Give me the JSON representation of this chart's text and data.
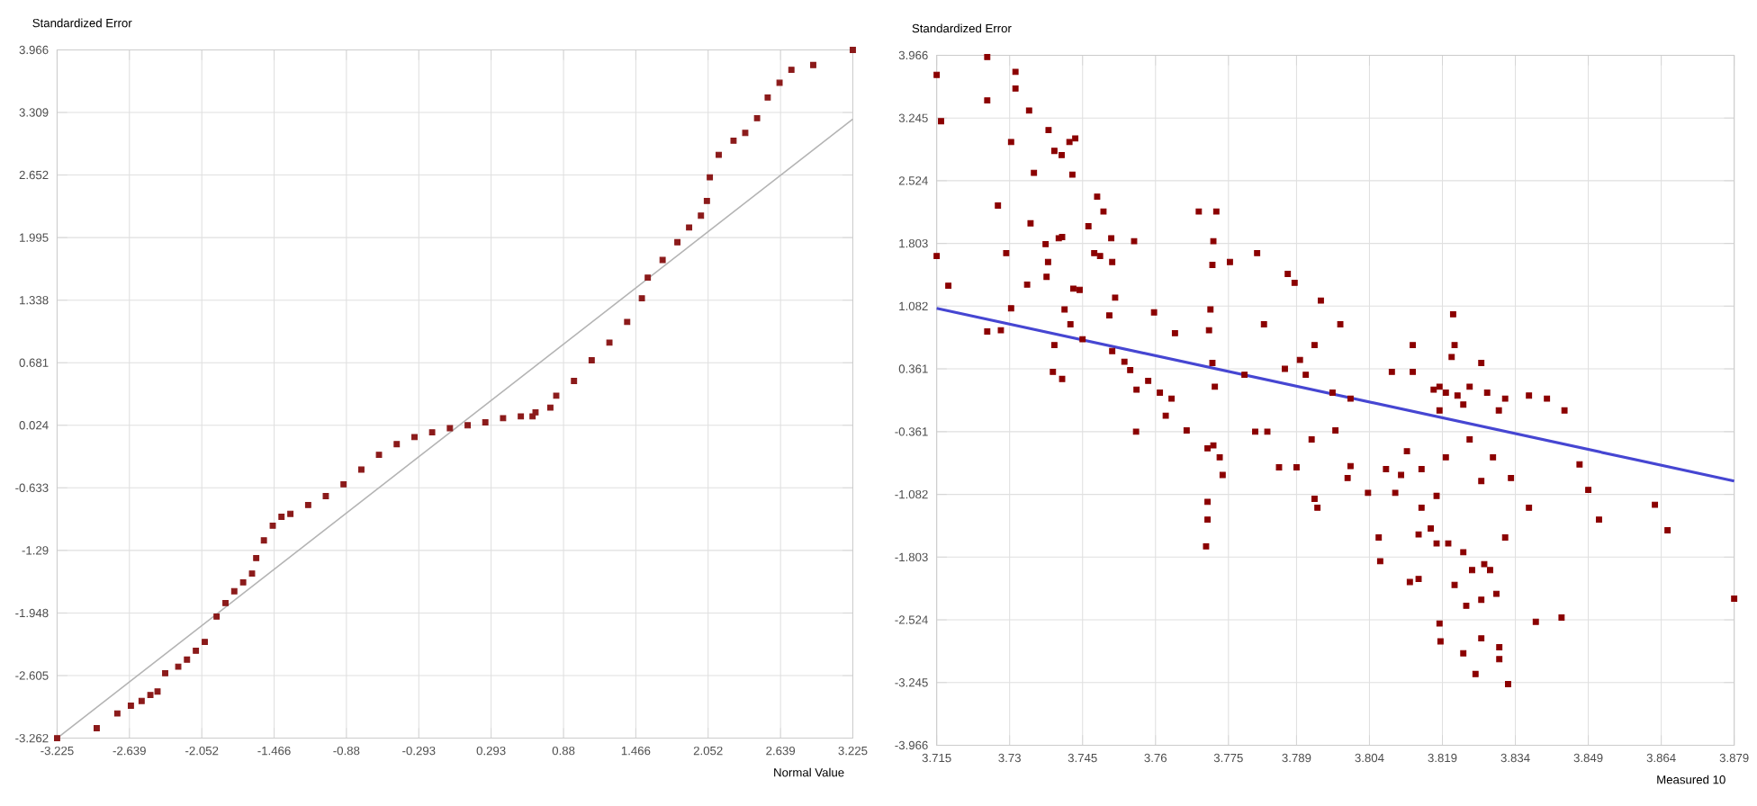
{
  "chart_data": [
    {
      "type": "scatter",
      "xlabel": "Normal Value",
      "ylabel": "Standardized Error",
      "grid": true,
      "xlim": [
        -3.225,
        3.225
      ],
      "ylim": [
        -3.262,
        3.966
      ],
      "xticks": [
        -3.225,
        -2.639,
        -2.052,
        -1.466,
        -0.88,
        -0.293,
        0.293,
        0.88,
        1.466,
        2.052,
        2.639,
        3.225
      ],
      "yticks": [
        -3.262,
        -2.605,
        -1.948,
        -1.29,
        -0.633,
        0.024,
        0.681,
        1.338,
        1.995,
        2.652,
        3.309,
        3.966
      ],
      "series": [
        {
          "type": "line",
          "color": "#b4b4b4",
          "x": [
            -3.225,
            3.225
          ],
          "values": [
            -3.262,
            3.24
          ]
        },
        {
          "color": "#8b1a1a",
          "marker": "square",
          "x": [
            -3.225,
            -2.904,
            -2.737,
            -2.627,
            -2.54,
            -2.469,
            -2.411,
            -2.349,
            -2.243,
            -2.172,
            -2.1,
            -2.028,
            -1.932,
            -1.86,
            -1.789,
            -1.717,
            -1.645,
            -1.611,
            -1.549,
            -1.477,
            -1.406,
            -1.334,
            -1.19,
            -1.047,
            -0.903,
            -0.759,
            -0.616,
            -0.472,
            -0.328,
            -0.185,
            -0.041,
            0.103,
            0.246,
            0.39,
            0.534,
            0.629,
            0.653,
            0.773,
            0.821,
            0.965,
            1.108,
            1.252,
            1.396,
            1.515,
            1.563,
            1.683,
            1.803,
            1.898,
            1.994,
            2.042,
            2.066,
            2.138,
            2.258,
            2.353,
            2.449,
            2.535,
            2.631,
            2.727,
            2.904,
            3.225
          ],
          "values": [
            -3.262,
            -3.157,
            -3.002,
            -2.921,
            -2.871,
            -2.809,
            -2.772,
            -2.58,
            -2.511,
            -2.437,
            -2.344,
            -2.251,
            -1.985,
            -1.843,
            -1.719,
            -1.626,
            -1.533,
            -1.371,
            -1.185,
            -1.03,
            -0.937,
            -0.906,
            -0.813,
            -0.72,
            -0.596,
            -0.441,
            -0.286,
            -0.174,
            -0.1,
            -0.05,
            -0.007,
            0.024,
            0.055,
            0.098,
            0.117,
            0.117,
            0.16,
            0.21,
            0.334,
            0.489,
            0.706,
            0.892,
            1.109,
            1.357,
            1.574,
            1.76,
            1.946,
            2.101,
            2.225,
            2.38,
            2.628,
            2.864,
            3.013,
            3.094,
            3.249,
            3.466,
            3.621,
            3.757,
            3.807,
            3.966
          ]
        }
      ]
    },
    {
      "type": "scatter",
      "xlabel": "Measured 10",
      "ylabel": "Standardized Error",
      "grid": true,
      "xlim": [
        3.715,
        3.879
      ],
      "ylim": [
        -3.966,
        3.966
      ],
      "xticks": [
        3.715,
        3.73,
        3.745,
        3.76,
        3.775,
        3.789,
        3.804,
        3.819,
        3.834,
        3.849,
        3.864,
        3.879
      ],
      "yticks": [
        -3.966,
        -3.245,
        -2.524,
        -1.803,
        -1.082,
        -0.361,
        0.361,
        1.082,
        1.803,
        2.524,
        3.245,
        3.966
      ],
      "series": [
        {
          "color": "#8b0000",
          "marker": "square",
          "x": [
            3.715,
            3.7159,
            3.715,
            3.7174,
            3.7254,
            3.7254,
            3.7312,
            3.7312,
            3.7303,
            3.7276,
            3.7293,
            3.7303,
            3.7254,
            3.7282,
            3.734,
            3.735,
            3.7343,
            3.7336,
            3.738,
            3.7392,
            3.7407,
            3.7423,
            3.7435,
            3.7429,
            3.7374,
            3.7379,
            3.7376,
            3.7401,
            3.7408,
            3.7389,
            3.7408,
            3.7392,
            3.7413,
            3.7425,
            3.7431,
            3.7444,
            3.745,
            3.7462,
            3.748,
            3.7493,
            3.7474,
            3.7486,
            3.7509,
            3.7511,
            3.7556,
            3.7505,
            3.7517,
            3.7511,
            3.7536,
            3.7548,
            3.7561,
            3.7585,
            3.7597,
            3.7609,
            3.7633,
            3.764,
            3.7689,
            3.7725,
            3.7719,
            3.7717,
            3.7713,
            3.771,
            3.7717,
            3.7722,
            3.7753,
            3.7809,
            3.7823,
            3.7783,
            3.7872,
            3.7886,
            3.794,
            3.798,
            3.7927,
            3.7866,
            3.7897,
            3.7909,
            3.7964,
            3.8001,
            3.8086,
            3.8129,
            3.8129,
            3.8184,
            3.8212,
            3.8209,
            3.8215,
            3.827,
            3.8172,
            3.8197,
            3.8221,
            3.8246,
            3.8282,
            3.8319,
            3.8368,
            3.8405,
            3.8441,
            3.8184,
            3.8233,
            3.8306,
            3.756,
            3.7621,
            3.7664,
            3.7707,
            3.7719,
            3.7732,
            3.7738,
            3.7707,
            3.7707,
            3.7704,
            3.7805,
            3.783,
            3.7854,
            3.789,
            3.7921,
            3.7927,
            3.7933,
            3.797,
            3.7995,
            3.8001,
            3.8037,
            3.8059,
            3.8062,
            3.8074,
            3.8093,
            3.8105,
            3.8117,
            3.8123,
            3.8141,
            3.8141,
            3.8147,
            3.8166,
            3.8178,
            3.8178,
            3.8147,
            3.8184,
            3.8186,
            3.8202,
            3.8215,
            3.8233,
            3.8233,
            3.8239,
            3.8251,
            3.8258,
            3.827,
            3.827,
            3.8276,
            3.8288,
            3.8301,
            3.8307,
            3.8307,
            3.8319,
            3.8325,
            3.8368,
            3.8382,
            3.8435,
            3.8472,
            3.849,
            3.8512,
            3.8627,
            3.8653,
            3.879,
            3.8246,
            3.8294,
            3.8197,
            3.8331,
            3.827
          ],
          "values": [
            3.741,
            3.208,
            1.658,
            1.317,
            3.946,
            3.447,
            3.775,
            3.584,
            2.969,
            2.239,
            1.692,
            1.057,
            0.791,
            0.805,
            3.331,
            2.614,
            2.034,
            1.33,
            3.106,
            2.867,
            2.819,
            2.969,
            3.01,
            2.594,
            1.795,
            1.59,
            1.419,
            1.863,
            1.877,
            0.327,
            0.245,
            0.634,
            1.044,
            0.873,
            1.283,
            1.269,
            0.702,
            2.0,
            2.341,
            2.17,
            1.692,
            1.658,
            1.863,
            1.59,
            1.829,
            0.975,
            1.18,
            0.566,
            0.443,
            0.347,
            0.122,
            0.224,
            1.01,
            0.088,
            0.019,
            0.771,
            2.17,
            2.17,
            1.829,
            1.556,
            1.044,
            0.805,
            0.429,
            0.156,
            1.59,
            1.692,
            0.873,
            0.293,
            1.453,
            1.351,
            1.146,
            0.873,
            0.634,
            0.361,
            0.464,
            0.293,
            0.088,
            0.019,
            0.327,
            0.634,
            0.327,
            0.156,
            0.989,
            0.497,
            0.634,
            0.429,
            0.122,
            0.088,
            0.054,
            0.156,
            0.088,
            0.019,
            0.054,
            0.019,
            -0.117,
            -0.117,
            -0.049,
            -0.117,
            -0.361,
            -0.177,
            -0.347,
            -0.552,
            -0.518,
            -0.655,
            -0.859,
            -1.167,
            -1.372,
            -1.679,
            -0.361,
            -0.361,
            -0.771,
            -0.771,
            -0.45,
            -1.133,
            -1.235,
            -0.347,
            -0.894,
            -0.757,
            -1.064,
            -1.577,
            -1.85,
            -0.791,
            -1.064,
            -0.859,
            -0.586,
            -2.089,
            -2.054,
            -1.542,
            -1.235,
            -1.474,
            -1.645,
            -1.099,
            -0.791,
            -2.566,
            -2.771,
            -1.645,
            -2.122,
            -2.908,
            -1.747,
            -2.362,
            -1.952,
            -3.147,
            -2.293,
            -2.737,
            -1.884,
            -1.952,
            -2.225,
            -2.839,
            -2.976,
            -1.577,
            -3.263,
            -1.235,
            -2.546,
            -2.498,
            -0.737,
            -1.03,
            -1.372,
            -1.201,
            -1.494,
            -2.28,
            -0.45,
            -0.655,
            -0.655,
            -0.894,
            -0.928
          ]
        },
        {
          "type": "line",
          "color": "#4646d2",
          "x": [
            3.715,
            3.879
          ],
          "values": [
            1.057,
            -0.928
          ]
        }
      ]
    }
  ]
}
